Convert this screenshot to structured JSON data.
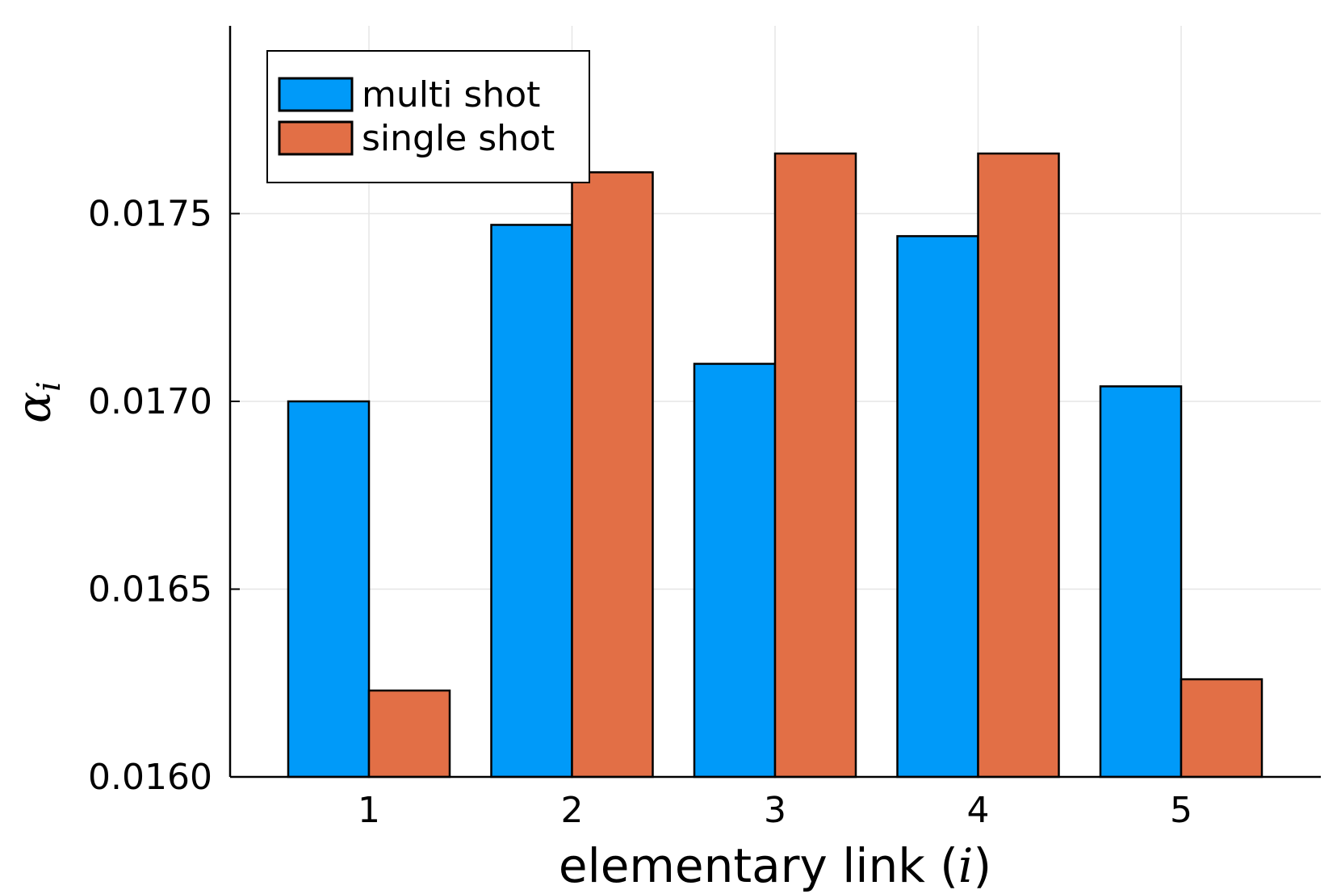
{
  "chart_data": {
    "type": "bar",
    "categories": [
      "1",
      "2",
      "3",
      "4",
      "5"
    ],
    "series": [
      {
        "name": "multi shot",
        "color": "#009af9",
        "values": [
          0.017,
          0.01747,
          0.0171,
          0.01744,
          0.01704
        ]
      },
      {
        "name": "single shot",
        "color": "#e26f46",
        "values": [
          0.01623,
          0.01761,
          0.01766,
          0.01766,
          0.01626
        ]
      }
    ],
    "xlabel_main": "elementary link (",
    "xlabel_var": "i",
    "xlabel_end": ")",
    "ylabel_sym": "α",
    "ylabel_sub": "i",
    "ylim": [
      0.016,
      0.018
    ],
    "yticks": [
      0.016,
      0.0165,
      0.017,
      0.0175
    ],
    "ytick_labels": [
      "0.0160",
      "0.0165",
      "0.0170",
      "0.0175"
    ],
    "grid": true,
    "legend_position": "top-left"
  }
}
